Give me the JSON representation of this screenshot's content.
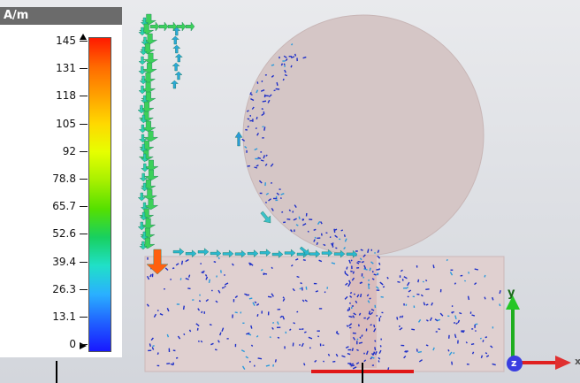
{
  "legend": {
    "unit": "A/m",
    "ticks": [
      "145",
      "131",
      "118",
      "105",
      "92",
      "78.8",
      "65.7",
      "52.6",
      "39.4",
      "26.3",
      "13.1",
      "0"
    ],
    "colormap": [
      "#ff1a00",
      "#ff6a00",
      "#ffa000",
      "#ffd800",
      "#e6ff00",
      "#a8f000",
      "#55e000",
      "#18d060",
      "#20e0c8",
      "#2ab0ff",
      "#2060ff",
      "#1818ff"
    ]
  },
  "axes": {
    "y": "y",
    "x": "x",
    "z": "z"
  },
  "colors": {
    "background": "#d9dce2",
    "substrate": "#dfcfcf",
    "feedline": "#d5b5b5",
    "patch": "#d2c2c2",
    "port": "#e01818",
    "vectors_strong": "#1fb86a",
    "vectors_weak": "#1e2fc8",
    "vector_peak": "#ff6010"
  }
}
